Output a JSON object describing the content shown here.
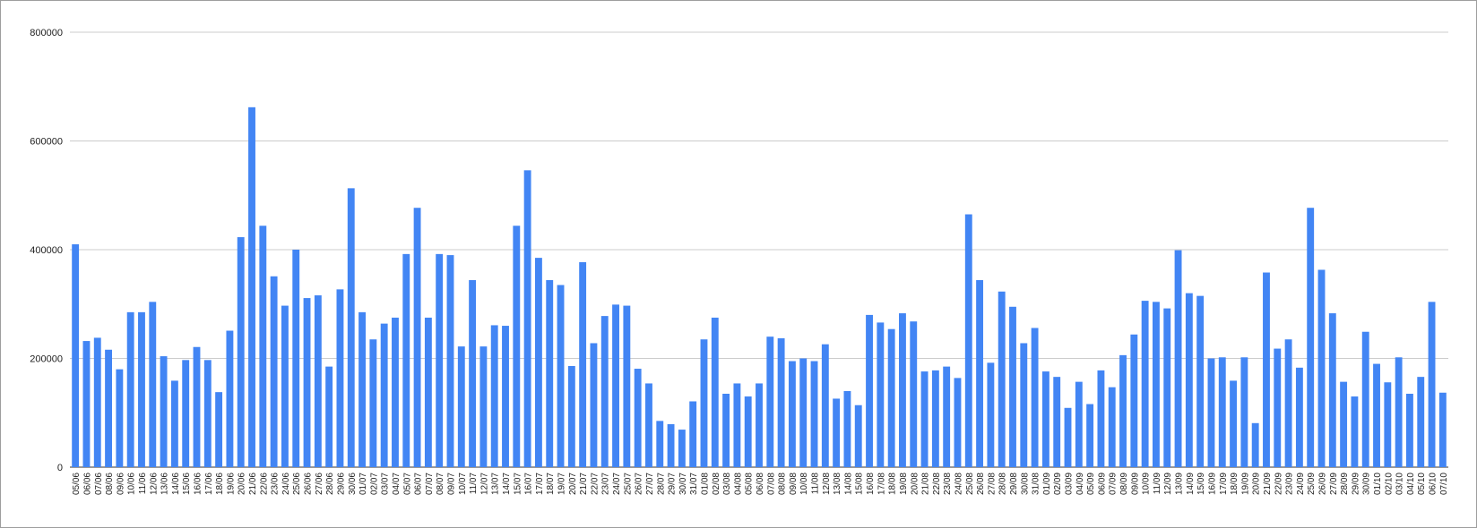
{
  "chart_data": {
    "type": "bar",
    "categories": [
      "05/06",
      "06/06",
      "07/06",
      "08/06",
      "09/06",
      "10/06",
      "11/06",
      "12/06",
      "13/06",
      "14/06",
      "15/06",
      "16/06",
      "17/06",
      "18/06",
      "19/06",
      "20/06",
      "21/06",
      "22/06",
      "23/06",
      "24/06",
      "25/06",
      "26/06",
      "27/06",
      "28/06",
      "29/06",
      "30/06",
      "01/07",
      "02/07",
      "03/07",
      "04/07",
      "05/07",
      "06/07",
      "07/07",
      "08/07",
      "09/07",
      "10/07",
      "11/07",
      "12/07",
      "13/07",
      "14/07",
      "15/07",
      "16/07",
      "17/07",
      "18/07",
      "19/07",
      "20/07",
      "21/07",
      "22/07",
      "23/07",
      "24/07",
      "25/07",
      "26/07",
      "27/07",
      "28/07",
      "29/07",
      "30/07",
      "31/07",
      "01/08",
      "02/08",
      "03/08",
      "04/08",
      "05/08",
      "06/08",
      "07/08",
      "08/08",
      "09/08",
      "10/08",
      "11/08",
      "12/08",
      "13/08",
      "14/08",
      "15/08",
      "16/08",
      "17/08",
      "18/08",
      "19/08",
      "20/08",
      "21/08",
      "22/08",
      "23/08",
      "24/08",
      "25/08",
      "26/08",
      "27/08",
      "28/08",
      "29/08",
      "30/08",
      "31/08",
      "01/09",
      "02/09",
      "03/09",
      "04/09",
      "05/09",
      "06/09",
      "07/09",
      "08/09",
      "09/09",
      "10/09",
      "11/09",
      "12/09",
      "13/09",
      "14/09",
      "15/09",
      "16/09",
      "17/09",
      "18/09",
      "19/09",
      "20/09",
      "21/09",
      "22/09",
      "23/09",
      "24/09",
      "25/09",
      "26/09",
      "27/09",
      "28/09",
      "29/09",
      "30/09",
      "01/10",
      "02/10",
      "03/10",
      "04/10",
      "05/10",
      "06/10",
      "07/10"
    ],
    "values": [
      410000,
      232000,
      238000,
      216000,
      180000,
      285000,
      285000,
      304000,
      204000,
      159000,
      197000,
      221000,
      197000,
      138000,
      251000,
      423000,
      662000,
      444000,
      351000,
      297000,
      400000,
      311000,
      316000,
      185000,
      327000,
      513000,
      285000,
      235000,
      264000,
      275000,
      392000,
      477000,
      275000,
      392000,
      390000,
      222000,
      344000,
      222000,
      261000,
      260000,
      444000,
      546000,
      385000,
      344000,
      335000,
      186000,
      377000,
      228000,
      278000,
      299000,
      297000,
      181000,
      154000,
      85000,
      79000,
      69000,
      121000,
      235000,
      275000,
      135000,
      154000,
      130000,
      154000,
      240000,
      237000,
      195000,
      200000,
      195000,
      226000,
      126000,
      140000,
      114000,
      280000,
      266000,
      254000,
      283000,
      268000,
      176000,
      178000,
      185000,
      164000,
      465000,
      344000,
      192000,
      323000,
      295000,
      228000,
      256000,
      176000,
      166000,
      109000,
      157000,
      116000,
      178000,
      147000,
      206000,
      244000,
      306000,
      304000,
      292000,
      399000,
      320000,
      315000,
      200000,
      202000,
      159000,
      202000,
      81000,
      358000,
      218000,
      235000,
      183000,
      477000,
      363000,
      283000,
      157000,
      130000,
      249000,
      190000,
      156000,
      202000,
      135000,
      166000,
      304000,
      137000
    ],
    "color": "#4285f4",
    "ylim": [
      0,
      800000
    ],
    "yticks": [
      0,
      200000,
      400000,
      600000,
      800000
    ],
    "grid": true
  }
}
